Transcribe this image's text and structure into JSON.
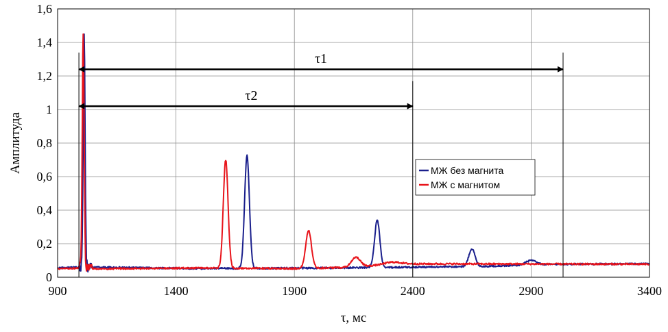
{
  "chart_data": {
    "type": "line",
    "title": "",
    "xlabel": "τ, мс",
    "ylabel": "Амплитуда",
    "xlim": [
      900,
      3400
    ],
    "ylim": [
      0,
      1.6
    ],
    "xticks": [
      900,
      1400,
      1900,
      2400,
      2900,
      3400
    ],
    "xtick_labels": [
      "900",
      "1400",
      "1900",
      "2400",
      "2900",
      "3400"
    ],
    "yticks": [
      0,
      0.2,
      0.4,
      0.6,
      0.8,
      1,
      1.2,
      1.4,
      1.6
    ],
    "ytick_labels": [
      "0",
      "0,2",
      "0,4",
      "0,6",
      "0,8",
      "1",
      "1,2",
      "1,4",
      "1,6"
    ],
    "grid": true,
    "legend_position": "center-right",
    "series": [
      {
        "name": "МЖ без магнита",
        "color": "#1a1f8c",
        "baseline": [
          [
            900,
            0.055
          ],
          [
            1000,
            0.06
          ],
          [
            1060,
            0.06
          ],
          [
            1500,
            0.052
          ],
          [
            2000,
            0.055
          ],
          [
            2400,
            0.06
          ],
          [
            2700,
            0.065
          ],
          [
            3000,
            0.078
          ],
          [
            3400,
            0.08
          ]
        ],
        "peaks": [
          {
            "x": 1012,
            "y": 1.45,
            "w": 4
          },
          {
            "x": 1700,
            "y": 0.73,
            "w": 10
          },
          {
            "x": 2250,
            "y": 0.34,
            "w": 11
          },
          {
            "x": 2650,
            "y": 0.17,
            "w": 13
          },
          {
            "x": 2900,
            "y": 0.1,
            "w": 22
          }
        ]
      },
      {
        "name": "МЖ с магнитом",
        "color": "#e8141b",
        "baseline": [
          [
            900,
            0.05
          ],
          [
            1000,
            0.055
          ],
          [
            1060,
            0.05
          ],
          [
            1500,
            0.055
          ],
          [
            1900,
            0.052
          ],
          [
            2100,
            0.058
          ],
          [
            2300,
            0.075
          ],
          [
            2400,
            0.08
          ],
          [
            3400,
            0.078
          ]
        ],
        "peaks": [
          {
            "x": 1008,
            "y": 1.45,
            "w": 4
          },
          {
            "x": 1610,
            "y": 0.7,
            "w": 10
          },
          {
            "x": 1960,
            "y": 0.28,
            "w": 12
          },
          {
            "x": 2160,
            "y": 0.12,
            "w": 18
          },
          {
            "x": 2320,
            "y": 0.09,
            "w": 35
          }
        ]
      }
    ],
    "annotations": [
      {
        "label": "τ1",
        "from_x": 990,
        "to_x": 3035,
        "y": 1.24,
        "marker_top": 1.34
      },
      {
        "label": "τ2",
        "from_x": 990,
        "to_x": 2400,
        "y": 1.02,
        "marker_top": 1.17
      }
    ]
  }
}
